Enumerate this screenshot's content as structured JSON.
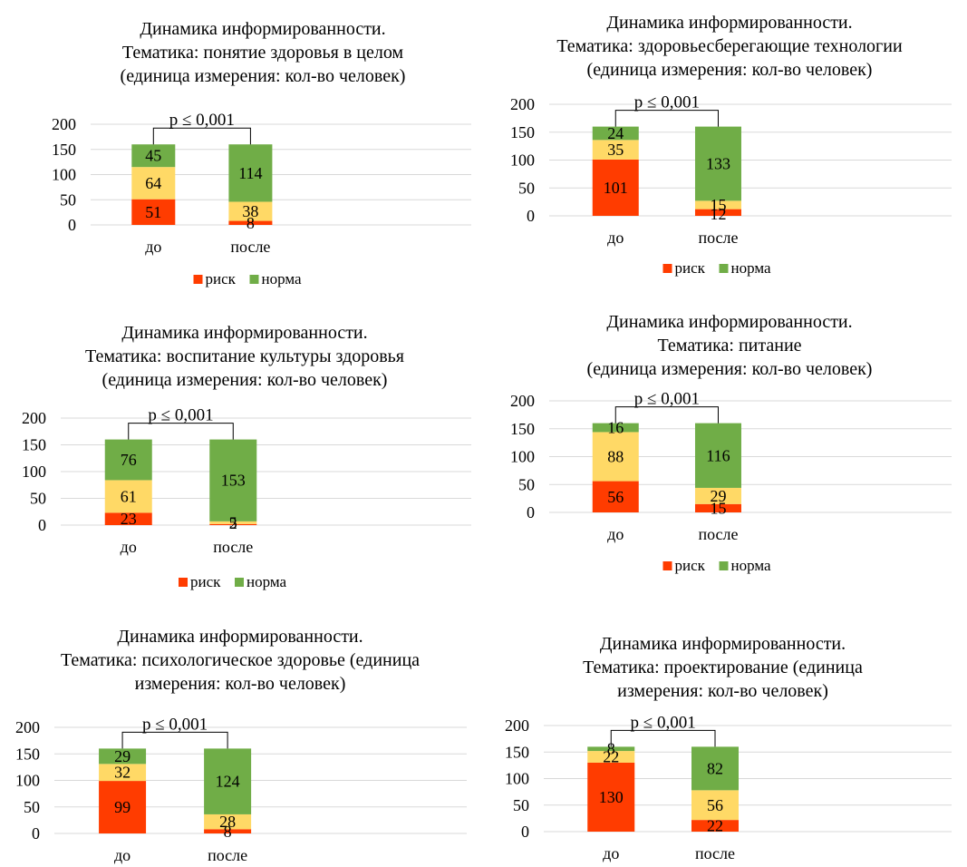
{
  "colors": {
    "risk": "#FF3C00",
    "mid": "#FFD966",
    "norm": "#70AD47",
    "grid": "#D9D9D9",
    "bracket": "#000000"
  },
  "chart_data": [
    {
      "type": "bar",
      "title": [
        "Динамика информированности.",
        "Тематика:  понятие здоровья в целом",
        "(единица измерения: кол-во человек)"
      ],
      "categories": [
        "до",
        "после"
      ],
      "series": [
        {
          "name": "риск",
          "values": [
            51,
            8
          ]
        },
        {
          "name": "",
          "values": [
            64,
            38
          ]
        },
        {
          "name": "норма",
          "values": [
            45,
            114
          ]
        }
      ],
      "ylim": [
        0,
        200
      ],
      "yticks": [
        "0",
        "50",
        "100",
        "150",
        "200"
      ],
      "annotation": "p ≤ 0,001",
      "legend": [
        "риск",
        "норма"
      ],
      "grid": true,
      "legend_position": "bottom"
    },
    {
      "type": "bar",
      "title": [
        "Динамика информированности.",
        "Тематика:  здоровьесберегающие технологии",
        "(единица измерения: кол-во человек)"
      ],
      "categories": [
        "до",
        "после"
      ],
      "series": [
        {
          "name": "риск",
          "values": [
            101,
            12
          ]
        },
        {
          "name": "",
          "values": [
            35,
            15
          ]
        },
        {
          "name": "норма",
          "values": [
            24,
            133
          ]
        }
      ],
      "ylim": [
        0,
        200
      ],
      "yticks": [
        "0",
        "50",
        "100",
        "150",
        "200"
      ],
      "annotation": "p ≤ 0,001",
      "legend": [
        "риск",
        "норма"
      ],
      "grid": true,
      "legend_position": "bottom"
    },
    {
      "type": "bar",
      "title": [
        "Динамика информированности.",
        "Тематика:  воспитание культуры здоровья",
        "(единица измерения: кол-во человек)"
      ],
      "categories": [
        "до",
        "после"
      ],
      "series": [
        {
          "name": "риск",
          "values": [
            23,
            2
          ]
        },
        {
          "name": "",
          "values": [
            61,
            5
          ]
        },
        {
          "name": "норма",
          "values": [
            76,
            153
          ]
        }
      ],
      "ylim": [
        0,
        200
      ],
      "yticks": [
        "0",
        "50",
        "100",
        "150",
        "200"
      ],
      "annotation": "p ≤ 0,001",
      "legend": [
        "риск",
        "норма"
      ],
      "grid": true,
      "legend_position": "bottom"
    },
    {
      "type": "bar",
      "title": [
        "Динамика информированности.",
        "Тематика:  питание",
        "(единица измерения: кол-во человек)"
      ],
      "categories": [
        "до",
        "после"
      ],
      "series": [
        {
          "name": "риск",
          "values": [
            56,
            15
          ]
        },
        {
          "name": "",
          "values": [
            88,
            29
          ]
        },
        {
          "name": "норма",
          "values": [
            16,
            116
          ]
        }
      ],
      "ylim": [
        0,
        200
      ],
      "yticks": [
        "0",
        "50",
        "100",
        "150",
        "200"
      ],
      "annotation": "p ≤ 0,001",
      "legend": [
        "риск",
        "норма"
      ],
      "grid": true,
      "legend_position": "bottom"
    },
    {
      "type": "bar",
      "title": [
        "Динамика информированности.",
        "Тематика:  психологическое здоровье  (единица",
        "измерения: кол-во человек)"
      ],
      "categories": [
        "до",
        "после"
      ],
      "series": [
        {
          "name": "риск",
          "values": [
            99,
            8
          ]
        },
        {
          "name": "",
          "values": [
            32,
            28
          ]
        },
        {
          "name": "норма",
          "values": [
            29,
            124
          ]
        }
      ],
      "ylim": [
        0,
        200
      ],
      "yticks": [
        "0",
        "50",
        "100",
        "150",
        "200"
      ],
      "annotation": "p ≤ 0,001",
      "legend": [],
      "grid": true,
      "legend_position": "none"
    },
    {
      "type": "bar",
      "title": [
        "Динамика информированности.",
        "Тематика:  проектирование (единица",
        "измерения: кол-во человек)"
      ],
      "categories": [
        "до",
        "после"
      ],
      "series": [
        {
          "name": "риск",
          "values": [
            130,
            22
          ]
        },
        {
          "name": "",
          "values": [
            22,
            56
          ]
        },
        {
          "name": "норма",
          "values": [
            8,
            82
          ]
        }
      ],
      "ylim": [
        0,
        200
      ],
      "yticks": [
        "0",
        "50",
        "100",
        "150",
        "200"
      ],
      "annotation": "p ≤ 0,001",
      "legend": [],
      "grid": true,
      "legend_position": "none"
    }
  ]
}
